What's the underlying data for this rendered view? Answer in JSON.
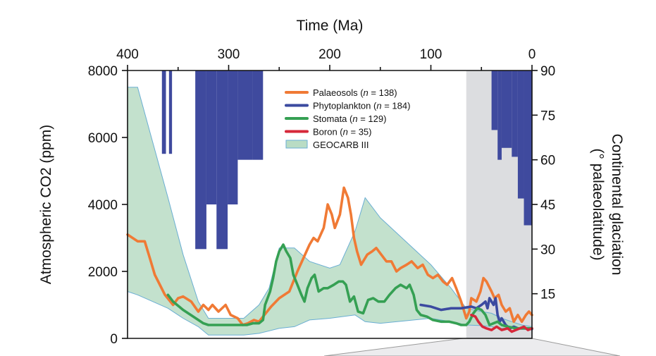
{
  "chart_data": {
    "type": "line",
    "top_axis": {
      "title": "Time (Ma)",
      "range": [
        400,
        0
      ],
      "ticks": [
        400,
        300,
        200,
        100,
        0
      ],
      "tick_labels": [
        "400",
        "300",
        "200",
        "100",
        "0"
      ]
    },
    "left_axis": {
      "title": "Atmospheric CO2 (ppm)",
      "range": [
        0,
        8000
      ],
      "ticks": [
        0,
        2000,
        4000,
        6000,
        8000
      ],
      "tick_labels": [
        "0",
        "2000",
        "4000",
        "6000",
        "8000"
      ]
    },
    "right_axis": {
      "title_line1": "Continental glaciation",
      "title_line2": "(° palaeolatitude)",
      "range": [
        0,
        90
      ],
      "ticks": [
        15,
        30,
        45,
        60,
        75,
        90
      ],
      "tick_labels": [
        "15",
        "30",
        "45",
        "60",
        "75",
        "90"
      ]
    },
    "grid": false,
    "legend_position": "top-center",
    "shaded_region": {
      "from_ma": 65,
      "to_ma": 0,
      "color": "#dcdde0"
    },
    "legend": [
      {
        "key": "palaeosols",
        "prefix": "Palaeosols (",
        "n_label": "n",
        "suffix": " = 138)",
        "color": "#f07a35",
        "style": "line"
      },
      {
        "key": "phytoplankton",
        "prefix": "Phytoplankton (",
        "n_label": "n",
        "suffix": " = 184)",
        "color": "#3b4aa0",
        "style": "line"
      },
      {
        "key": "stomata",
        "prefix": "Stomata (",
        "n_label": "n",
        "suffix": " = 129)",
        "color": "#35a053",
        "style": "line"
      },
      {
        "key": "boron",
        "prefix": "Boron (",
        "n_label": "n",
        "suffix": " = 35)",
        "color": "#d6283a",
        "style": "line"
      },
      {
        "key": "geocarb",
        "prefix": "GEOCARB III",
        "n_label": "",
        "suffix": "",
        "color": "#b9dcc4",
        "style": "patch"
      }
    ],
    "glaciation": {
      "color": "#3f4a9e",
      "bars": [
        {
          "from": 366,
          "to": 362,
          "lat": 62
        },
        {
          "from": 359,
          "to": 356,
          "lat": 62
        },
        {
          "from": 333,
          "to": 322,
          "lat": 30
        },
        {
          "from": 322,
          "to": 312,
          "lat": 45
        },
        {
          "from": 312,
          "to": 301,
          "lat": 30
        },
        {
          "from": 301,
          "to": 291,
          "lat": 45
        },
        {
          "from": 291,
          "to": 276,
          "lat": 60
        },
        {
          "from": 276,
          "to": 266,
          "lat": 60
        },
        {
          "from": 40,
          "to": 34,
          "lat": 70
        },
        {
          "from": 34,
          "to": 30,
          "lat": 60
        },
        {
          "from": 30,
          "to": 20,
          "lat": 64
        },
        {
          "from": 20,
          "to": 14,
          "lat": 61
        },
        {
          "from": 14,
          "to": 8,
          "lat": 47
        },
        {
          "from": 8,
          "to": 0,
          "lat": 38
        }
      ]
    },
    "geocarb_upper": [
      [
        400,
        7500
      ],
      [
        390,
        7500
      ],
      [
        360,
        4200
      ],
      [
        345,
        2500
      ],
      [
        330,
        1100
      ],
      [
        320,
        600
      ],
      [
        300,
        600
      ],
      [
        285,
        600
      ],
      [
        270,
        1000
      ],
      [
        260,
        1500
      ],
      [
        250,
        2700
      ],
      [
        235,
        2700
      ],
      [
        220,
        2300
      ],
      [
        200,
        2100
      ],
      [
        190,
        2200
      ],
      [
        175,
        3200
      ],
      [
        165,
        4200
      ],
      [
        150,
        3600
      ],
      [
        100,
        2200
      ],
      [
        80,
        1500
      ],
      [
        65,
        900
      ],
      [
        50,
        800
      ],
      [
        40,
        750
      ],
      [
        30,
        600
      ],
      [
        20,
        500
      ],
      [
        10,
        400
      ],
      [
        0,
        350
      ]
    ],
    "geocarb_lower": [
      [
        0,
        250
      ],
      [
        10,
        280
      ],
      [
        20,
        300
      ],
      [
        30,
        300
      ],
      [
        40,
        350
      ],
      [
        50,
        380
      ],
      [
        65,
        400
      ],
      [
        80,
        500
      ],
      [
        100,
        600
      ],
      [
        150,
        450
      ],
      [
        165,
        500
      ],
      [
        175,
        700
      ],
      [
        200,
        600
      ],
      [
        220,
        550
      ],
      [
        235,
        350
      ],
      [
        250,
        300
      ],
      [
        270,
        150
      ],
      [
        285,
        100
      ],
      [
        300,
        100
      ],
      [
        320,
        100
      ],
      [
        330,
        350
      ],
      [
        345,
        600
      ],
      [
        360,
        900
      ],
      [
        390,
        1300
      ],
      [
        400,
        1400
      ]
    ],
    "series": [
      {
        "key": "palaeosols",
        "color": "#f07a35",
        "points": [
          [
            400,
            3100
          ],
          [
            390,
            2900
          ],
          [
            383,
            2900
          ],
          [
            378,
            2400
          ],
          [
            373,
            1900
          ],
          [
            368,
            1600
          ],
          [
            363,
            1300
          ],
          [
            355,
            1000
          ],
          [
            350,
            1200
          ],
          [
            345,
            1250
          ],
          [
            337,
            1100
          ],
          [
            330,
            800
          ],
          [
            325,
            1000
          ],
          [
            320,
            850
          ],
          [
            316,
            1000
          ],
          [
            310,
            800
          ],
          [
            303,
            1000
          ],
          [
            298,
            700
          ],
          [
            291,
            600
          ],
          [
            286,
            400
          ],
          [
            281,
            450
          ],
          [
            275,
            550
          ],
          [
            270,
            500
          ],
          [
            258,
            950
          ],
          [
            250,
            1200
          ],
          [
            240,
            1400
          ],
          [
            232,
            2000
          ],
          [
            226,
            2400
          ],
          [
            220,
            2800
          ],
          [
            216,
            3000
          ],
          [
            212,
            2900
          ],
          [
            206,
            3300
          ],
          [
            202,
            4000
          ],
          [
            198,
            3700
          ],
          [
            195,
            3300
          ],
          [
            190,
            3700
          ],
          [
            186,
            4500
          ],
          [
            182,
            4200
          ],
          [
            179,
            3700
          ],
          [
            176,
            3000
          ],
          [
            173,
            2600
          ],
          [
            169,
            2200
          ],
          [
            163,
            2500
          ],
          [
            158,
            2600
          ],
          [
            154,
            2700
          ],
          [
            149,
            2500
          ],
          [
            144,
            2300
          ],
          [
            139,
            2300
          ],
          [
            134,
            2000
          ],
          [
            130,
            2100
          ],
          [
            124,
            2200
          ],
          [
            119,
            2300
          ],
          [
            113,
            2100
          ],
          [
            108,
            2200
          ],
          [
            103,
            1900
          ],
          [
            98,
            1800
          ],
          [
            93,
            1900
          ],
          [
            88,
            1700
          ],
          [
            84,
            1600
          ],
          [
            79,
            1800
          ],
          [
            75,
            1500
          ],
          [
            70,
            1100
          ],
          [
            65,
            600
          ],
          [
            62,
            800
          ],
          [
            60,
            1200
          ],
          [
            55,
            1100
          ],
          [
            51,
            1400
          ],
          [
            48,
            1800
          ],
          [
            45,
            1700
          ],
          [
            40,
            1400
          ],
          [
            37,
            1200
          ],
          [
            33,
            1300
          ],
          [
            30,
            1000
          ],
          [
            26,
            800
          ],
          [
            22,
            900
          ],
          [
            18,
            500
          ],
          [
            14,
            700
          ],
          [
            10,
            500
          ],
          [
            6,
            700
          ],
          [
            3,
            800
          ],
          [
            0,
            700
          ]
        ]
      },
      {
        "key": "phytoplankton",
        "color": "#3b4aa0",
        "points": [
          [
            110,
            1000
          ],
          [
            100,
            950
          ],
          [
            90,
            850
          ],
          [
            80,
            900
          ],
          [
            70,
            900
          ],
          [
            60,
            950
          ],
          [
            55,
            900
          ],
          [
            50,
            1000
          ],
          [
            46,
            1100
          ],
          [
            44,
            900
          ],
          [
            42,
            1200
          ],
          [
            40,
            1100
          ],
          [
            38,
            1000
          ],
          [
            36,
            1200
          ],
          [
            34,
            700
          ],
          [
            32,
            500
          ],
          [
            30,
            600
          ],
          [
            26,
            400
          ],
          [
            22,
            300
          ],
          [
            18,
            350
          ],
          [
            14,
            300
          ],
          [
            10,
            300
          ],
          [
            6,
            300
          ],
          [
            3,
            300
          ],
          [
            0,
            280
          ]
        ]
      },
      {
        "key": "stomata",
        "color": "#35a053",
        "points": [
          [
            360,
            1300
          ],
          [
            355,
            1100
          ],
          [
            345,
            850
          ],
          [
            335,
            650
          ],
          [
            325,
            450
          ],
          [
            320,
            400
          ],
          [
            310,
            400
          ],
          [
            300,
            400
          ],
          [
            290,
            400
          ],
          [
            282,
            400
          ],
          [
            276,
            450
          ],
          [
            270,
            450
          ],
          [
            266,
            550
          ],
          [
            264,
            1000
          ],
          [
            259,
            1400
          ],
          [
            256,
            1800
          ],
          [
            253,
            2300
          ],
          [
            250,
            2600
          ],
          [
            246,
            2800
          ],
          [
            243,
            2600
          ],
          [
            239,
            2400
          ],
          [
            236,
            1900
          ],
          [
            232,
            1600
          ],
          [
            228,
            1300
          ],
          [
            225,
            1100
          ],
          [
            222,
            1500
          ],
          [
            218,
            1800
          ],
          [
            215,
            1900
          ],
          [
            211,
            1400
          ],
          [
            206,
            1500
          ],
          [
            202,
            1500
          ],
          [
            196,
            1600
          ],
          [
            191,
            1700
          ],
          [
            187,
            1700
          ],
          [
            184,
            1600
          ],
          [
            180,
            1100
          ],
          [
            176,
            1250
          ],
          [
            172,
            800
          ],
          [
            167,
            750
          ],
          [
            162,
            1150
          ],
          [
            157,
            1200
          ],
          [
            152,
            1100
          ],
          [
            146,
            1100
          ],
          [
            141,
            1300
          ],
          [
            135,
            1500
          ],
          [
            130,
            1600
          ],
          [
            124,
            1500
          ],
          [
            121,
            1600
          ],
          [
            117,
            1300
          ],
          [
            114,
            850
          ],
          [
            110,
            700
          ],
          [
            104,
            650
          ],
          [
            98,
            550
          ],
          [
            90,
            500
          ],
          [
            82,
            500
          ],
          [
            75,
            450
          ],
          [
            70,
            400
          ],
          [
            65,
            400
          ],
          [
            62,
            500
          ],
          [
            58,
            750
          ],
          [
            54,
            900
          ],
          [
            50,
            850
          ],
          [
            46,
            700
          ],
          [
            42,
            400
          ],
          [
            38,
            450
          ],
          [
            34,
            500
          ],
          [
            30,
            400
          ],
          [
            24,
            350
          ],
          [
            16,
            300
          ],
          [
            10,
            300
          ],
          [
            5,
            300
          ],
          [
            0,
            300
          ]
        ]
      },
      {
        "key": "boron",
        "color": "#d6283a",
        "points": [
          [
            60,
            700
          ],
          [
            56,
            650
          ],
          [
            53,
            500
          ],
          [
            49,
            350
          ],
          [
            45,
            300
          ],
          [
            40,
            250
          ],
          [
            35,
            350
          ],
          [
            30,
            250
          ],
          [
            24,
            300
          ],
          [
            20,
            200
          ],
          [
            16,
            250
          ],
          [
            12,
            300
          ],
          [
            8,
            350
          ],
          [
            4,
            250
          ],
          [
            0,
            300
          ]
        ]
      }
    ]
  }
}
